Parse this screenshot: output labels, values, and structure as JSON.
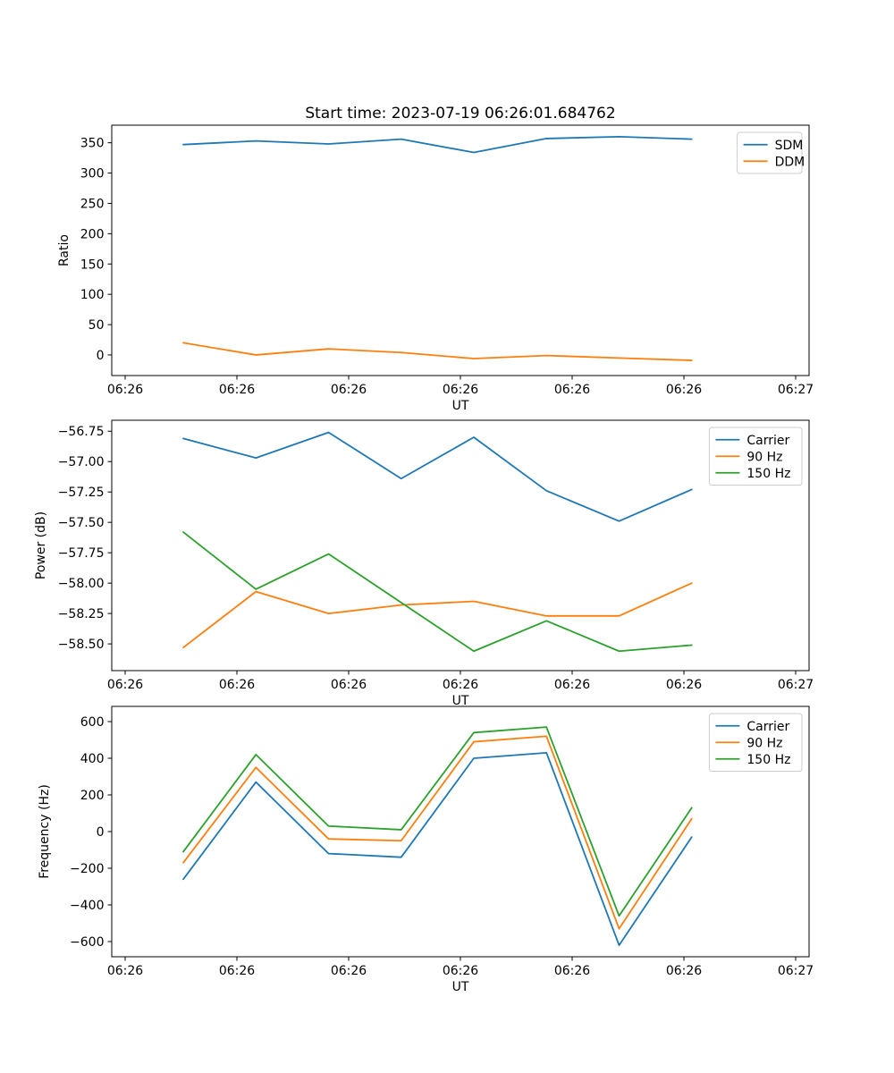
{
  "figure": {
    "background": "#ffffff",
    "axis_color": "#000000",
    "text_color": "#000000",
    "legend_border_color": "#cccccc",
    "legend_background": "#ffffff"
  },
  "chart_data": [
    {
      "type": "line",
      "title": "Start time: 2023-07-19 06:26:01.684762",
      "xlabel": "UT",
      "ylabel": "Ratio",
      "x": [
        5.2,
        11.7,
        18.2,
        24.7,
        31.2,
        37.7,
        44.2,
        50.7
      ],
      "xlim": [
        -1.2,
        61.2
      ],
      "xtick_values": [
        0,
        10,
        20,
        30,
        40,
        50,
        60
      ],
      "xtick_labels": [
        "06:26",
        "06:26",
        "06:26",
        "06:26",
        "06:26",
        "06:26",
        "06:27"
      ],
      "ylim": [
        -34,
        379
      ],
      "ytick_values": [
        0,
        50,
        100,
        150,
        200,
        250,
        300,
        350
      ],
      "ytick_decimals": 0,
      "legend_position": "upper right",
      "series": [
        {
          "name": "SDM",
          "color": "#1f77b4",
          "values": [
            347,
            353,
            348,
            356,
            334,
            357,
            360,
            356
          ]
        },
        {
          "name": "DDM",
          "color": "#ff7f0e",
          "values": [
            20,
            0,
            10,
            4,
            -6,
            -1,
            -5,
            -9
          ]
        }
      ]
    },
    {
      "type": "line",
      "title": "",
      "xlabel": "UT",
      "ylabel": "Power (dB)",
      "x": [
        5.2,
        11.7,
        18.2,
        24.7,
        31.2,
        37.7,
        44.2,
        50.7
      ],
      "xlim": [
        -1.2,
        61.2
      ],
      "xtick_values": [
        0,
        10,
        20,
        30,
        40,
        50,
        60
      ],
      "xtick_labels": [
        "06:26",
        "06:26",
        "06:26",
        "06:26",
        "06:26",
        "06:26",
        "06:27"
      ],
      "ylim": [
        -58.72,
        -56.66
      ],
      "ytick_values": [
        -58.5,
        -58.25,
        -58.0,
        -57.75,
        -57.5,
        -57.25,
        -57.0,
        -56.75
      ],
      "ytick_decimals": 2,
      "legend_position": "upper right",
      "series": [
        {
          "name": "Carrier",
          "color": "#1f77b4",
          "values": [
            -56.81,
            -56.97,
            -56.76,
            -57.14,
            -56.8,
            -57.24,
            -57.49,
            -57.23
          ]
        },
        {
          "name": "90 Hz",
          "color": "#ff7f0e",
          "values": [
            -58.53,
            -58.07,
            -58.25,
            -58.18,
            -58.15,
            -58.27,
            -58.27,
            -58.0
          ]
        },
        {
          "name": "150 Hz",
          "color": "#2ca02c",
          "values": [
            -57.58,
            -58.05,
            -57.76,
            -58.16,
            -58.56,
            -58.31,
            -58.56,
            -58.51
          ]
        }
      ]
    },
    {
      "type": "line",
      "title": "",
      "xlabel": "UT",
      "ylabel": "Frequency (Hz)",
      "x": [
        5.2,
        11.7,
        18.2,
        24.7,
        31.2,
        37.7,
        44.2,
        50.7
      ],
      "xlim": [
        -1.2,
        61.2
      ],
      "xtick_values": [
        0,
        10,
        20,
        30,
        40,
        50,
        60
      ],
      "xtick_labels": [
        "06:26",
        "06:26",
        "06:26",
        "06:26",
        "06:26",
        "06:26",
        "06:27"
      ],
      "ylim": [
        -683,
        683
      ],
      "ytick_values": [
        -600,
        -400,
        -200,
        0,
        200,
        400,
        600
      ],
      "ytick_decimals": 0,
      "legend_position": "upper right",
      "series": [
        {
          "name": "Carrier",
          "color": "#1f77b4",
          "values": [
            -260,
            270,
            -120,
            -140,
            400,
            430,
            -620,
            -30
          ]
        },
        {
          "name": "90 Hz",
          "color": "#ff7f0e",
          "values": [
            -170,
            350,
            -40,
            -50,
            490,
            520,
            -530,
            70
          ]
        },
        {
          "name": "150 Hz",
          "color": "#2ca02c",
          "values": [
            -110,
            420,
            30,
            10,
            540,
            570,
            -460,
            130
          ]
        }
      ]
    }
  ]
}
